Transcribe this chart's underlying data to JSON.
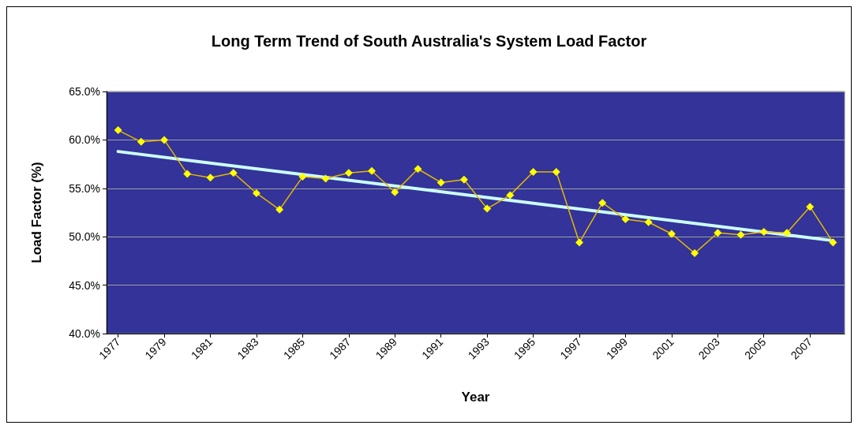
{
  "chart_data": {
    "type": "line",
    "title": "Long Term Trend of South Australia's System Load Factor",
    "xlabel": "Year",
    "ylabel": "Load Factor (%)",
    "xlim": [
      1976.5,
      2008.5
    ],
    "xticks": [
      1977,
      1979,
      1981,
      1983,
      1985,
      1987,
      1989,
      1991,
      1993,
      1995,
      1997,
      1999,
      2001,
      2003,
      2005,
      2007
    ],
    "ylim": [
      40,
      65
    ],
    "yticks": [
      {
        "value": 40,
        "label": "40.0%"
      },
      {
        "value": 45,
        "label": "45.0%"
      },
      {
        "value": 50,
        "label": "50.0%"
      },
      {
        "value": 55,
        "label": "55.0%"
      },
      {
        "value": 60,
        "label": "60.0%"
      },
      {
        "value": 65,
        "label": "65.0%"
      }
    ],
    "grid": "y",
    "marker": "diamond",
    "series": [
      {
        "color": "#ffff00",
        "x": [
          1977,
          1978,
          1979,
          1980,
          1981,
          1982,
          1983,
          1984,
          1985,
          1986,
          1987,
          1988,
          1989,
          1990,
          1991,
          1992,
          1993,
          1994,
          1995,
          1996,
          1997,
          1998,
          1999,
          2000,
          2001,
          2002,
          2003,
          2004,
          2005,
          2006,
          2007,
          2008
        ],
        "values": [
          61.0,
          59.8,
          60.0,
          56.5,
          56.1,
          56.6,
          54.5,
          52.8,
          56.2,
          56.0,
          56.6,
          56.8,
          54.6,
          57.0,
          55.6,
          55.9,
          52.9,
          54.3,
          56.7,
          56.7,
          49.4,
          53.5,
          51.8,
          51.5,
          50.3,
          48.3,
          50.4,
          50.2,
          50.5,
          50.4,
          53.1,
          49.4
        ]
      },
      {
        "type": "line",
        "color": "#ccffff",
        "marker": "none",
        "x": [
          1977,
          2008
        ],
        "values": [
          58.8,
          49.6
        ]
      }
    ]
  }
}
